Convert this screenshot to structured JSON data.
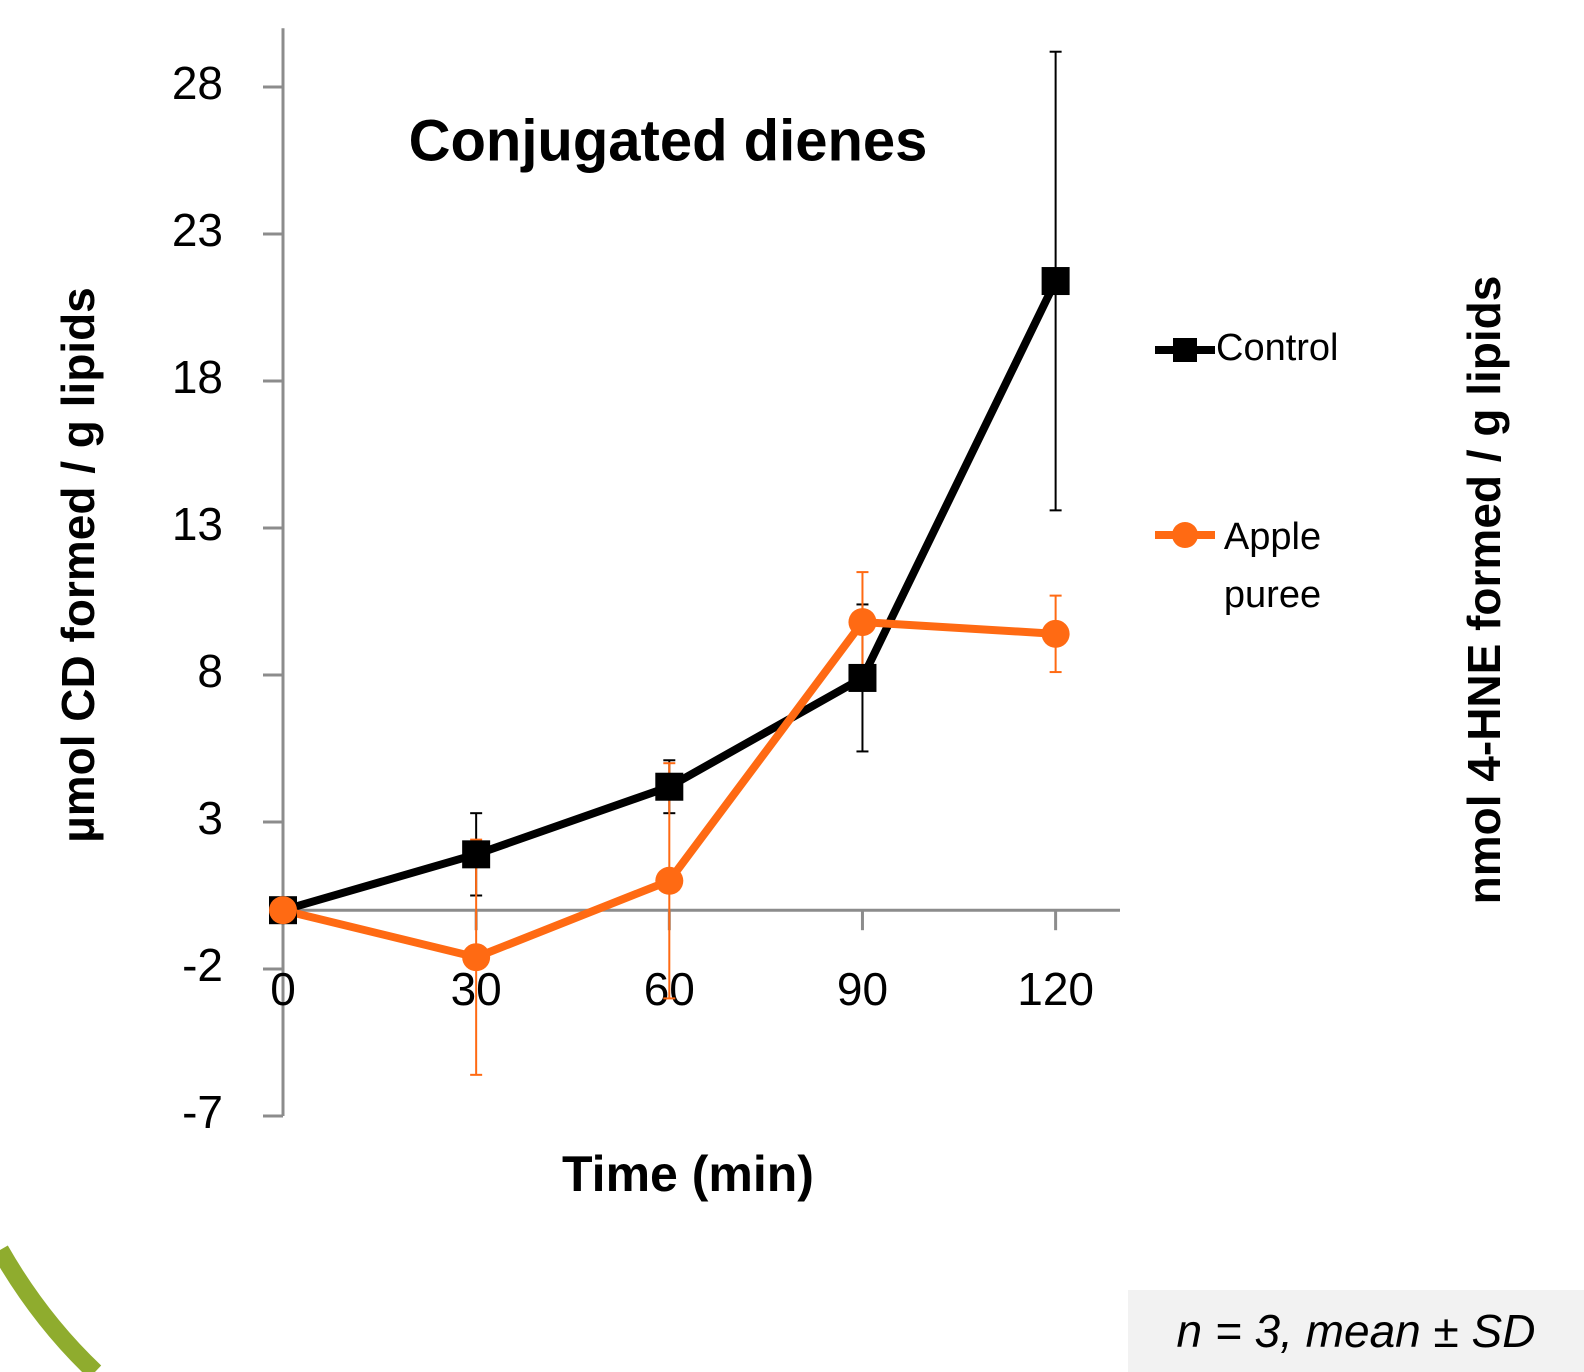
{
  "chart_data": {
    "type": "line",
    "title": "Conjugated dienes",
    "x_label": "Time (min)",
    "y_label": "µmol CD formed / g lipids",
    "y2_label": "nmol 4-HNE formed / g lipids",
    "note": "n = 3, mean ± SD",
    "x": [
      0,
      30,
      60,
      90,
      120
    ],
    "xlim": [
      0,
      130
    ],
    "xticks": [
      0,
      30,
      60,
      90,
      120
    ],
    "ylim": [
      -7,
      30
    ],
    "yticks": [
      -7,
      -2,
      3,
      8,
      13,
      18,
      23,
      28
    ],
    "series": [
      {
        "name": "Control",
        "color": "#000000",
        "marker": "square",
        "values": [
          0,
          1.9,
          4.2,
          7.9,
          21.4
        ],
        "errors": [
          0,
          1.4,
          0.9,
          2.5,
          7.8
        ]
      },
      {
        "name": "Apple puree",
        "color": "#ff6a13",
        "marker": "circle",
        "values": [
          0,
          -1.6,
          1.0,
          9.8,
          9.4
        ],
        "errors": [
          0,
          4.0,
          4.0,
          1.7,
          1.3
        ]
      }
    ]
  }
}
